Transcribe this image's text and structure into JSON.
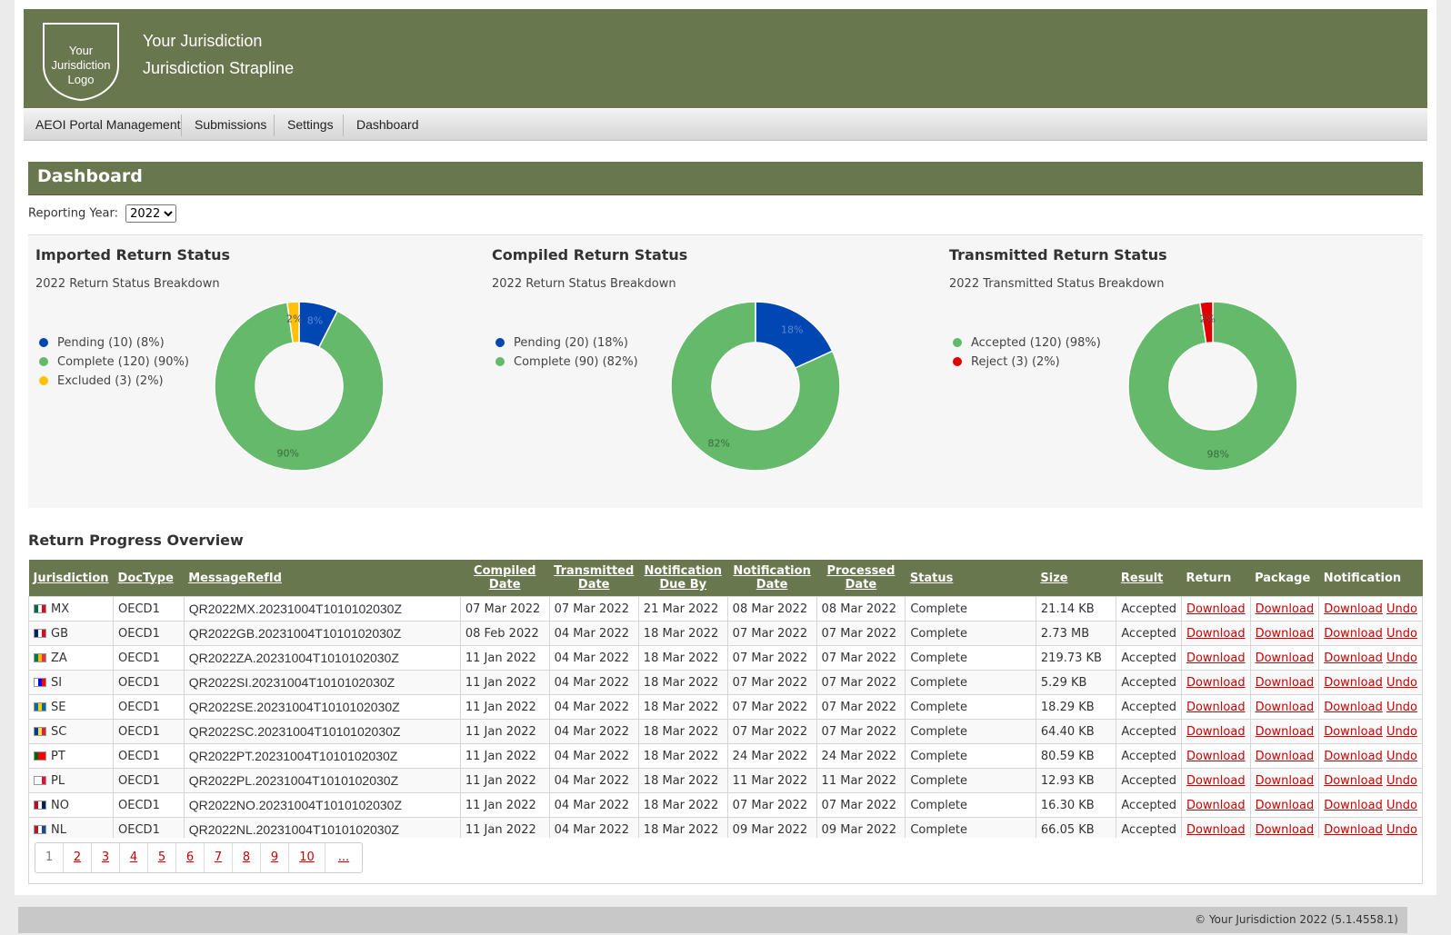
{
  "header": {
    "logo_lines": [
      "Your",
      "Jurisdiction",
      "Logo"
    ],
    "title": "Your Jurisdiction",
    "strapline": "Jurisdiction Strapline",
    "color": "#68774d"
  },
  "nav": {
    "items": [
      {
        "label": "AEOI Portal Management"
      },
      {
        "label": "Submissions"
      },
      {
        "label": "Settings"
      },
      {
        "label": "Dashboard"
      }
    ]
  },
  "dashboard": {
    "title": "Dashboard",
    "year_label": "Reporting Year:",
    "year_selected": "2022"
  },
  "chart_data": [
    {
      "type": "pie",
      "title": "Imported Return Status",
      "subtitle": "2022 Return Status Breakdown",
      "donut": true,
      "legend_position": "left",
      "slices": [
        {
          "name": "Pending",
          "legend": "Pending (10) (8%)",
          "value": 10,
          "pct": 8,
          "label": "8%",
          "color": "#0047b3"
        },
        {
          "name": "Complete",
          "legend": "Complete (120) (90%)",
          "value": 120,
          "pct": 90,
          "label": "90%",
          "color": "#64b96a"
        },
        {
          "name": "Excluded",
          "legend": "Excluded (3) (2%)",
          "value": 3,
          "pct": 2,
          "label": "2%",
          "color": "#ffc107"
        }
      ]
    },
    {
      "type": "pie",
      "title": "Compiled Return Status",
      "subtitle": "2022 Return Status Breakdown",
      "donut": true,
      "legend_position": "left",
      "slices": [
        {
          "name": "Pending",
          "legend": "Pending (20) (18%)",
          "value": 20,
          "pct": 18,
          "label": "18%",
          "color": "#0047b3"
        },
        {
          "name": "Complete",
          "legend": "Complete (90) (82%)",
          "value": 90,
          "pct": 82,
          "label": "82%",
          "color": "#64b96a"
        }
      ]
    },
    {
      "type": "pie",
      "title": "Transmitted Return Status",
      "subtitle": "2022 Transmitted Status Breakdown",
      "donut": true,
      "legend_position": "left",
      "slices": [
        {
          "name": "Accepted",
          "legend": "Accepted (120) (98%)",
          "value": 120,
          "pct": 98,
          "label": "98%",
          "color": "#64b96a"
        },
        {
          "name": "Reject",
          "legend": "Reject (3) (2%)",
          "value": 3,
          "pct": 2,
          "label": "2%",
          "color": "#e00000"
        }
      ]
    }
  ],
  "table": {
    "title": "Return Progress Overview",
    "columns": [
      {
        "label": "Jurisdiction",
        "sortable": true
      },
      {
        "label": "DocType",
        "sortable": true
      },
      {
        "label": "MessageRefId",
        "sortable": true
      },
      {
        "label": "Compiled Date",
        "sortable": true
      },
      {
        "label": "Transmitted Date",
        "sortable": true
      },
      {
        "label": "Notification Due By",
        "sortable": true
      },
      {
        "label": "Notification Date",
        "sortable": true
      },
      {
        "label": "Processed Date",
        "sortable": true
      },
      {
        "label": "Status",
        "sortable": true
      },
      {
        "label": "Size",
        "sortable": true
      },
      {
        "label": "Result",
        "sortable": true
      },
      {
        "label": "Return",
        "sortable": false
      },
      {
        "label": "Package",
        "sortable": false
      },
      {
        "label": "Notification",
        "sortable": false
      }
    ],
    "link_label": "Download",
    "undo_label": "Undo",
    "rows": [
      {
        "code": "MX",
        "flag": [
          "#006847",
          "#ffffff",
          "#ce1126"
        ],
        "doctype": "OECD1",
        "ref": "QR2022MX.20231004T1010102030Z",
        "compiled": "07 Mar 2022",
        "transmitted": "07 Mar 2022",
        "due": "21 Mar 2022",
        "notified": "08 Mar 2022",
        "processed": "08 Mar 2022",
        "status": "Complete",
        "size": "21.14 KB",
        "result": "Accepted"
      },
      {
        "code": "GB",
        "flag": [
          "#012169",
          "#ffffff",
          "#c8102e"
        ],
        "doctype": "OECD1",
        "ref": "QR2022GB.20231004T1010102030Z",
        "compiled": "08 Feb 2022",
        "transmitted": "04 Mar 2022",
        "due": "18 Mar 2022",
        "notified": "07 Mar 2022",
        "processed": "07 Mar 2022",
        "status": "Complete",
        "size": "2.73 MB",
        "result": "Accepted"
      },
      {
        "code": "ZA",
        "flag": [
          "#007a4d",
          "#ffb612",
          "#de3831"
        ],
        "doctype": "OECD1",
        "ref": "QR2022ZA.20231004T1010102030Z",
        "compiled": "11 Jan 2022",
        "transmitted": "04 Mar 2022",
        "due": "18 Mar 2022",
        "notified": "07 Mar 2022",
        "processed": "07 Mar 2022",
        "status": "Complete",
        "size": "219.73 KB",
        "result": "Accepted"
      },
      {
        "code": "SI",
        "flag": [
          "#ffffff",
          "#0000ff",
          "#ff0000"
        ],
        "doctype": "OECD1",
        "ref": "QR2022SI.20231004T1010102030Z",
        "compiled": "11 Jan 2022",
        "transmitted": "04 Mar 2022",
        "due": "18 Mar 2022",
        "notified": "07 Mar 2022",
        "processed": "07 Mar 2022",
        "status": "Complete",
        "size": "5.29 KB",
        "result": "Accepted"
      },
      {
        "code": "SE",
        "flag": [
          "#006aa7",
          "#fecc00",
          "#006aa7"
        ],
        "doctype": "OECD1",
        "ref": "QR2022SE.20231004T1010102030Z",
        "compiled": "11 Jan 2022",
        "transmitted": "04 Mar 2022",
        "due": "18 Mar 2022",
        "notified": "07 Mar 2022",
        "processed": "07 Mar 2022",
        "status": "Complete",
        "size": "18.29 KB",
        "result": "Accepted"
      },
      {
        "code": "SC",
        "flag": [
          "#003f87",
          "#fcd856",
          "#d62828"
        ],
        "doctype": "OECD1",
        "ref": "QR2022SC.20231004T1010102030Z",
        "compiled": "11 Jan 2022",
        "transmitted": "04 Mar 2022",
        "due": "18 Mar 2022",
        "notified": "07 Mar 2022",
        "processed": "07 Mar 2022",
        "status": "Complete",
        "size": "64.40 KB",
        "result": "Accepted"
      },
      {
        "code": "PT",
        "flag": [
          "#006600",
          "#ff0000",
          "#ff0000"
        ],
        "doctype": "OECD1",
        "ref": "QR2022PT.20231004T1010102030Z",
        "compiled": "11 Jan 2022",
        "transmitted": "04 Mar 2022",
        "due": "18 Mar 2022",
        "notified": "24 Mar 2022",
        "processed": "24 Mar 2022",
        "status": "Complete",
        "size": "80.59 KB",
        "result": "Accepted"
      },
      {
        "code": "PL",
        "flag": [
          "#ffffff",
          "#ffffff",
          "#dc143c"
        ],
        "doctype": "OECD1",
        "ref": "QR2022PL.20231004T1010102030Z",
        "compiled": "11 Jan 2022",
        "transmitted": "04 Mar 2022",
        "due": "18 Mar 2022",
        "notified": "11 Mar 2022",
        "processed": "11 Mar 2022",
        "status": "Complete",
        "size": "12.93 KB",
        "result": "Accepted"
      },
      {
        "code": "NO",
        "flag": [
          "#ba0c2f",
          "#ffffff",
          "#00205b"
        ],
        "doctype": "OECD1",
        "ref": "QR2022NO.20231004T1010102030Z",
        "compiled": "11 Jan 2022",
        "transmitted": "04 Mar 2022",
        "due": "18 Mar 2022",
        "notified": "07 Mar 2022",
        "processed": "07 Mar 2022",
        "status": "Complete",
        "size": "16.30 KB",
        "result": "Accepted"
      },
      {
        "code": "NL",
        "flag": [
          "#ae1c28",
          "#ffffff",
          "#21468b"
        ],
        "doctype": "OECD1",
        "ref": "QR2022NL.20231004T1010102030Z",
        "compiled": "11 Jan 2022",
        "transmitted": "04 Mar 2022",
        "due": "18 Mar 2022",
        "notified": "09 Mar 2022",
        "processed": "09 Mar 2022",
        "status": "Complete",
        "size": "66.05 KB",
        "result": "Accepted"
      }
    ]
  },
  "pager": {
    "pages": [
      "1",
      "2",
      "3",
      "4",
      "5",
      "6",
      "7",
      "8",
      "9",
      "10",
      "..."
    ],
    "current": "1"
  },
  "footer": {
    "text": "© Your Jurisdiction 2022 (5.1.4558.1)"
  }
}
